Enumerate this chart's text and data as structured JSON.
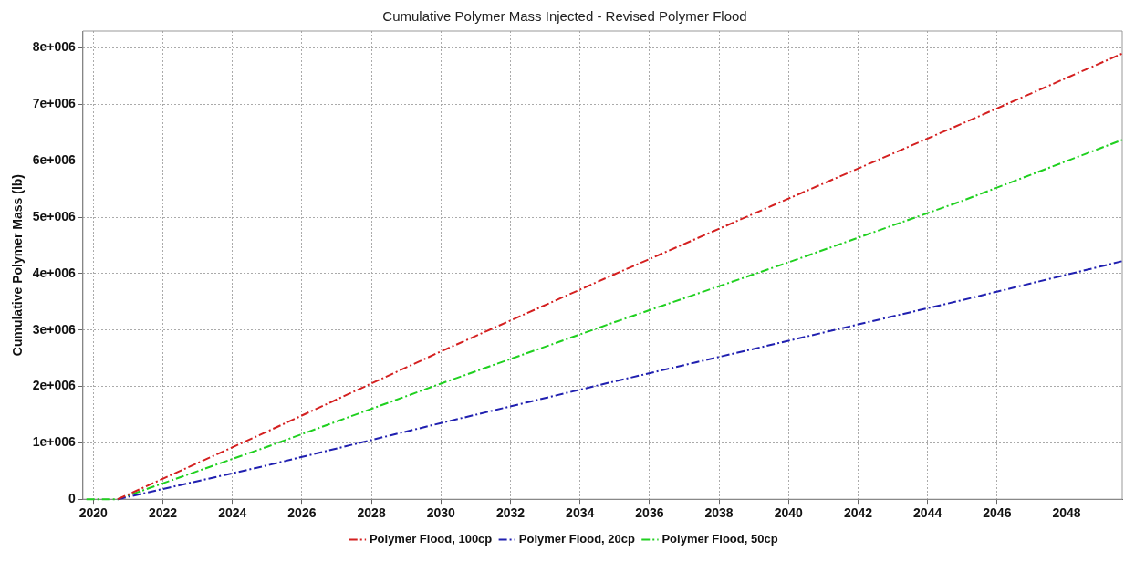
{
  "chart_data": {
    "type": "line",
    "title": "Cumulative Polymer Mass Injected - Revised Polymer Flood",
    "ylabel": "Cumulative Polymer Mass (lb)",
    "x": [
      2019.8,
      2020.7,
      2025,
      2030,
      2035,
      2040,
      2045,
      2049.6
    ],
    "series": [
      {
        "name": "Polymer Flood, 100cp",
        "color": "#d42020",
        "values": [
          null,
          0,
          1200000,
          2620000,
          3990000,
          5330000,
          6660000,
          7900000
        ]
      },
      {
        "name": "Polymer Flood, 20cp",
        "color": "#2020b0",
        "values": [
          null,
          0,
          600000,
          1350000,
          2090000,
          2810000,
          3530000,
          4220000
        ]
      },
      {
        "name": "Polymer Flood, 50cp",
        "color": "#20d020",
        "values": [
          0,
          0,
          930000,
          2050000,
          3140000,
          4200000,
          5290000,
          6370000
        ]
      }
    ],
    "xlim": [
      2019.7,
      2049.6
    ],
    "xticks": [
      2020,
      2022,
      2024,
      2026,
      2028,
      2030,
      2032,
      2034,
      2036,
      2038,
      2040,
      2042,
      2044,
      2046,
      2048
    ],
    "ylim": [
      0,
      8300000
    ],
    "yticks": [
      {
        "value": 0,
        "label": "0"
      },
      {
        "value": 1000000,
        "label": "1e+006"
      },
      {
        "value": 2000000,
        "label": "2e+006"
      },
      {
        "value": 3000000,
        "label": "3e+006"
      },
      {
        "value": 4000000,
        "label": "4e+006"
      },
      {
        "value": 5000000,
        "label": "5e+006"
      },
      {
        "value": 6000000,
        "label": "6e+006"
      },
      {
        "value": 7000000,
        "label": "7e+006"
      },
      {
        "value": 8000000,
        "label": "8e+006"
      }
    ],
    "grid": true,
    "legend": "bottom",
    "marker": "none",
    "line_style": "dashed"
  }
}
